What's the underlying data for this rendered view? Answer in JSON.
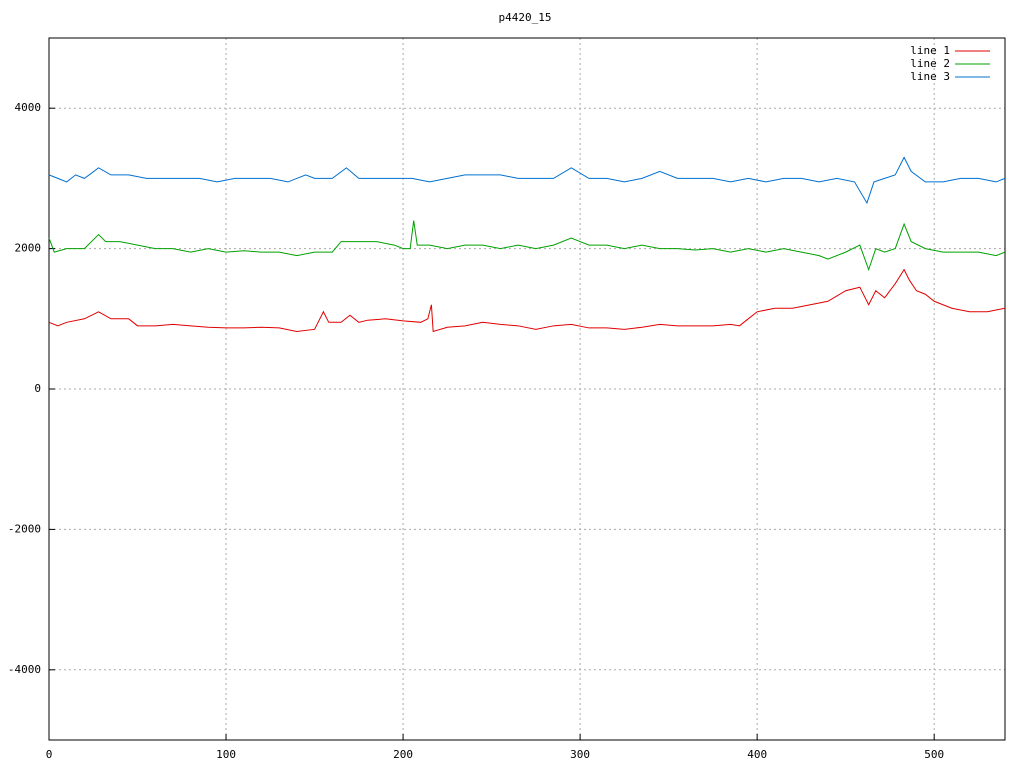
{
  "chart_data": {
    "type": "line",
    "title": "p4420_15",
    "xlim": [
      0,
      540
    ],
    "ylim": [
      -5000,
      5000
    ],
    "xticks": [
      0,
      100,
      200,
      300,
      400,
      500
    ],
    "yticks": [
      -4000,
      -2000,
      0,
      2000,
      4000
    ],
    "grid": true,
    "legend": "top-right",
    "series": [
      {
        "name": "line 1",
        "color": "#e00000",
        "x": [
          0,
          5,
          10,
          20,
          28,
          35,
          45,
          50,
          60,
          70,
          80,
          90,
          100,
          110,
          120,
          130,
          140,
          150,
          155,
          158,
          165,
          170,
          175,
          180,
          190,
          200,
          210,
          214,
          216,
          217,
          225,
          235,
          245,
          255,
          265,
          275,
          285,
          295,
          305,
          315,
          325,
          335,
          345,
          355,
          365,
          375,
          385,
          390,
          395,
          400,
          410,
          420,
          430,
          440,
          450,
          458,
          463,
          467,
          472,
          478,
          483,
          486,
          490,
          495,
          500,
          510,
          520,
          530,
          540
        ],
        "values": [
          950,
          900,
          950,
          1000,
          1100,
          1000,
          1000,
          900,
          900,
          920,
          900,
          880,
          870,
          870,
          880,
          870,
          820,
          850,
          1100,
          950,
          950,
          1050,
          950,
          980,
          1000,
          970,
          950,
          1000,
          1200,
          820,
          880,
          900,
          950,
          920,
          900,
          850,
          900,
          920,
          870,
          870,
          850,
          880,
          920,
          900,
          900,
          900,
          920,
          900,
          1000,
          1100,
          1150,
          1150,
          1200,
          1250,
          1400,
          1450,
          1200,
          1400,
          1300,
          1500,
          1700,
          1550,
          1400,
          1350,
          1250,
          1150,
          1100,
          1100,
          1150
        ]
      },
      {
        "name": "line 2",
        "color": "#00a000",
        "x": [
          0,
          3,
          10,
          20,
          28,
          32,
          40,
          50,
          60,
          70,
          80,
          90,
          100,
          110,
          120,
          130,
          140,
          150,
          160,
          165,
          175,
          185,
          195,
          200,
          204,
          206,
          208,
          215,
          225,
          235,
          245,
          255,
          265,
          275,
          285,
          295,
          305,
          315,
          325,
          335,
          345,
          355,
          365,
          375,
          385,
          395,
          405,
          415,
          425,
          435,
          440,
          450,
          458,
          463,
          467,
          472,
          478,
          483,
          487,
          495,
          505,
          515,
          525,
          535,
          540
        ],
        "values": [
          2150,
          1950,
          2000,
          2000,
          2200,
          2100,
          2100,
          2050,
          2000,
          2000,
          1950,
          2000,
          1950,
          1970,
          1950,
          1950,
          1900,
          1950,
          1950,
          2100,
          2100,
          2100,
          2050,
          2000,
          2000,
          2400,
          2050,
          2050,
          2000,
          2050,
          2050,
          2000,
          2050,
          2000,
          2050,
          2150,
          2050,
          2050,
          2000,
          2050,
          2000,
          2000,
          1980,
          2000,
          1950,
          2000,
          1950,
          2000,
          1950,
          1900,
          1850,
          1950,
          2050,
          1700,
          2000,
          1950,
          2000,
          2350,
          2100,
          2000,
          1950,
          1950,
          1950,
          1900,
          1950
        ]
      },
      {
        "name": "line 3",
        "color": "#0070d0",
        "x": [
          0,
          5,
          10,
          15,
          20,
          28,
          35,
          45,
          55,
          65,
          75,
          85,
          95,
          105,
          115,
          125,
          135,
          145,
          150,
          160,
          168,
          175,
          185,
          195,
          205,
          215,
          225,
          235,
          245,
          255,
          265,
          275,
          285,
          295,
          305,
          315,
          325,
          335,
          345,
          355,
          365,
          375,
          385,
          395,
          405,
          415,
          425,
          435,
          445,
          455,
          462,
          466,
          472,
          478,
          483,
          487,
          495,
          505,
          515,
          525,
          535,
          540
        ],
        "values": [
          3050,
          3000,
          2950,
          3050,
          3000,
          3150,
          3050,
          3050,
          3000,
          3000,
          3000,
          3000,
          2950,
          3000,
          3000,
          3000,
          2950,
          3050,
          3000,
          3000,
          3150,
          3000,
          3000,
          3000,
          3000,
          2950,
          3000,
          3050,
          3050,
          3050,
          3000,
          3000,
          3000,
          3150,
          3000,
          3000,
          2950,
          3000,
          3100,
          3000,
          3000,
          3000,
          2950,
          3000,
          2950,
          3000,
          3000,
          2950,
          3000,
          2950,
          2650,
          2950,
          3000,
          3050,
          3300,
          3100,
          2950,
          2950,
          3000,
          3000,
          2950,
          3000
        ]
      }
    ]
  }
}
